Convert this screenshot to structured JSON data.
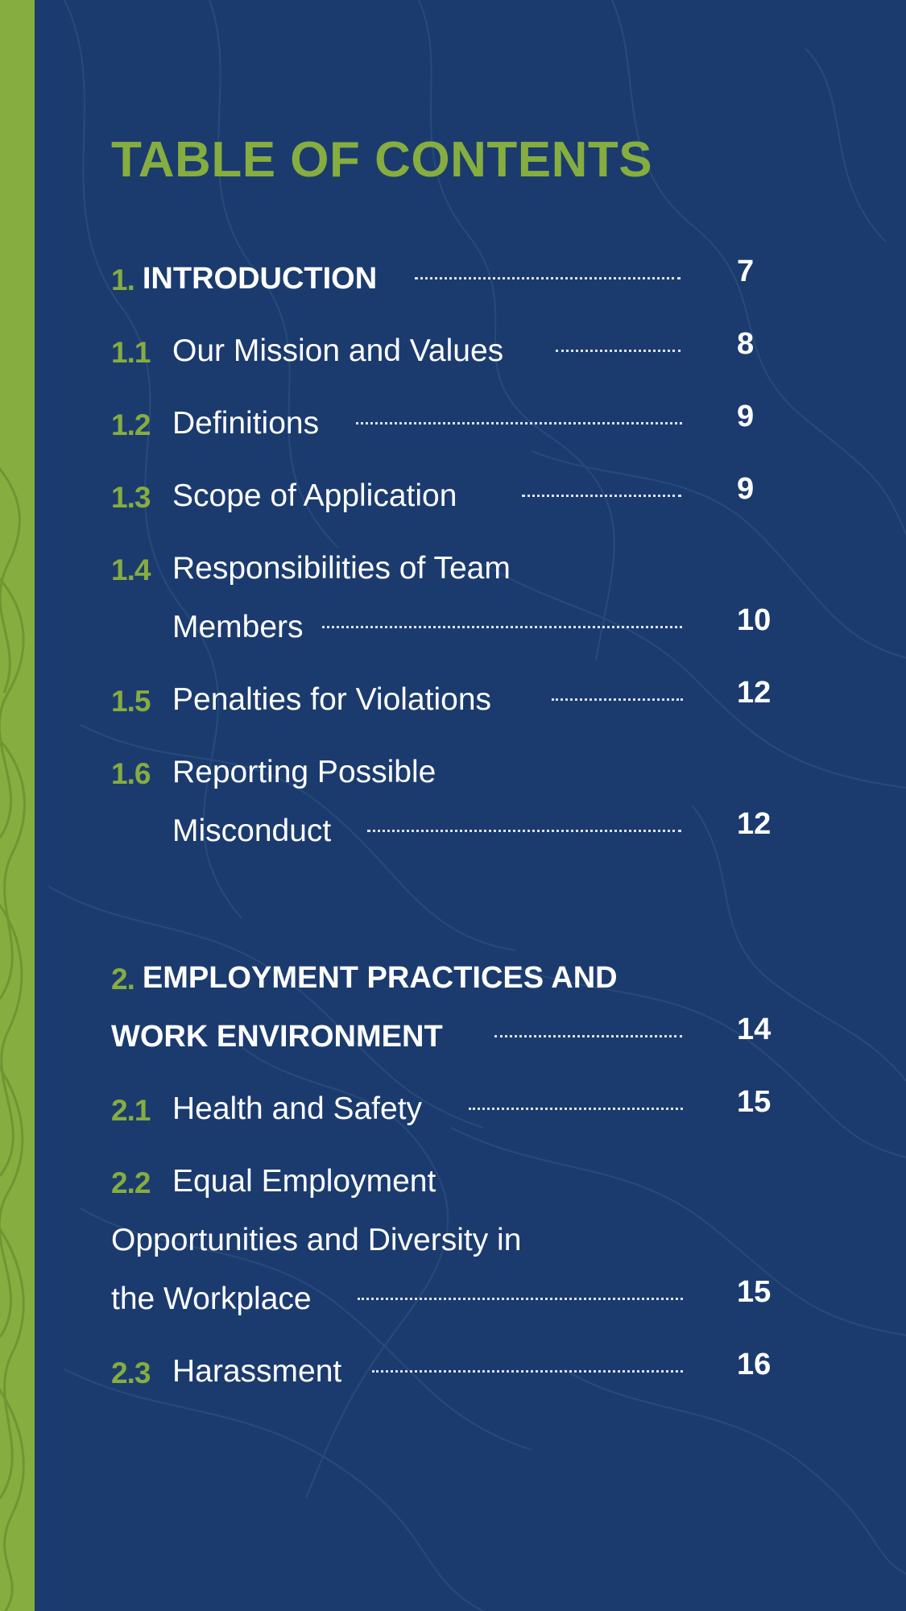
{
  "title": "TABLE OF CONTENTS",
  "colors": {
    "background": "#1b3b6f",
    "accent": "#86ad3f",
    "text": "#ffffff"
  },
  "sections": [
    {
      "number": "1.",
      "title": "INTRODUCTION",
      "page": "7",
      "items": [
        {
          "number": "1.1",
          "lines": [
            "Our Mission and Values"
          ],
          "page": "8"
        },
        {
          "number": "1.2",
          "lines": [
            "Definitions"
          ],
          "page": "9"
        },
        {
          "number": "1.3",
          "lines": [
            "Scope of Application"
          ],
          "page": "9"
        },
        {
          "number": "1.4",
          "lines": [
            "Responsibilities of Team",
            "Members"
          ],
          "page": "10"
        },
        {
          "number": "1.5",
          "lines": [
            "Penalties for Violations"
          ],
          "page": "12"
        },
        {
          "number": "1.6",
          "lines": [
            "Reporting Possible",
            "Misconduct"
          ],
          "page": "12"
        }
      ]
    },
    {
      "number": "2.",
      "title_lines": [
        "EMPLOYMENT PRACTICES AND",
        "WORK ENVIRONMENT"
      ],
      "page": "14",
      "items": [
        {
          "number": "2.1",
          "lines": [
            "Health and Safety"
          ],
          "page": "15"
        },
        {
          "number": "2.2",
          "lines": [
            "Equal Employment",
            "Opportunities and Diversity in",
            "the Workplace"
          ],
          "page": "15"
        },
        {
          "number": "2.3",
          "lines": [
            "Harassment"
          ],
          "page": "16"
        }
      ]
    }
  ]
}
